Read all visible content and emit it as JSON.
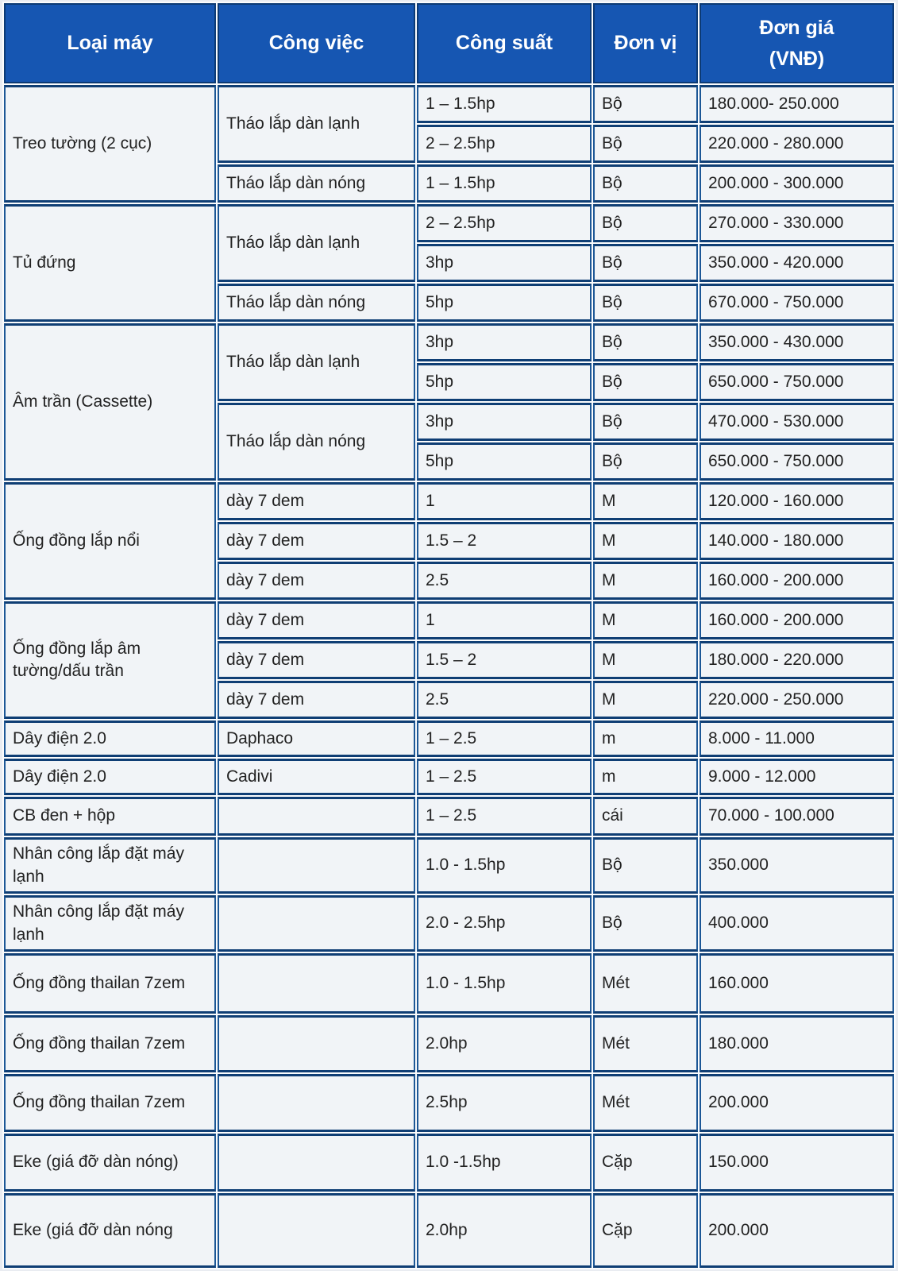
{
  "colors": {
    "header_bg": "#1656b2",
    "header_text": "#ffffff",
    "border_dark": "#0f3e74",
    "border_mid": "#1c5796",
    "cell_bg": "#f1f4f7",
    "page_bg": "#e9ecf1",
    "body_text": "#222222"
  },
  "table": {
    "headers": [
      {
        "id": "loai-may",
        "lines": [
          "Loại máy"
        ]
      },
      {
        "id": "cong-viec",
        "lines": [
          "Công việc"
        ]
      },
      {
        "id": "cong-suat",
        "lines": [
          "Công suất"
        ]
      },
      {
        "id": "don-vi",
        "lines": [
          "Đơn vị"
        ]
      },
      {
        "id": "don-gia",
        "lines": [
          "Đơn giá",
          "(VNĐ)"
        ]
      }
    ],
    "rows": [
      {
        "cells": [
          {
            "t": "Treo tường (2 cục)",
            "rs": 3
          },
          {
            "t": "Tháo lắp dàn lạnh",
            "rs": 2
          },
          {
            "t": "1 – 1.5hp"
          },
          {
            "t": "Bộ"
          },
          {
            "t": "180.000- 250.000"
          }
        ]
      },
      {
        "cells": [
          {
            "t": "2 – 2.5hp"
          },
          {
            "t": "Bộ"
          },
          {
            "t": "220.000 - 280.000"
          }
        ]
      },
      {
        "cells": [
          {
            "t": "Tháo lắp dàn nóng"
          },
          {
            "t": "1 – 1.5hp"
          },
          {
            "t": "Bộ"
          },
          {
            "t": "200.000 - 300.000"
          }
        ]
      },
      {
        "cells": [
          {
            "t": "Tủ đứng",
            "rs": 3
          },
          {
            "t": "Tháo lắp dàn lạnh",
            "rs": 2
          },
          {
            "t": "2 – 2.5hp"
          },
          {
            "t": "Bộ"
          },
          {
            "t": "270.000 - 330.000"
          }
        ]
      },
      {
        "cells": [
          {
            "t": "3hp"
          },
          {
            "t": "Bộ"
          },
          {
            "t": "350.000 - 420.000"
          }
        ]
      },
      {
        "cells": [
          {
            "t": "Tháo lắp dàn nóng"
          },
          {
            "t": "5hp"
          },
          {
            "t": "Bộ"
          },
          {
            "t": "670.000 - 750.000"
          }
        ]
      },
      {
        "cells": [
          {
            "t": "Âm trần (Cassette)",
            "rs": 4
          },
          {
            "t": "Tháo lắp dàn lạnh",
            "rs": 2
          },
          {
            "t": "3hp"
          },
          {
            "t": "Bộ"
          },
          {
            "t": "350.000 - 430.000"
          }
        ]
      },
      {
        "cells": [
          {
            "t": "5hp"
          },
          {
            "t": "Bộ"
          },
          {
            "t": "650.000 - 750.000"
          }
        ]
      },
      {
        "cells": [
          {
            "t": "Tháo lắp dàn nóng",
            "rs": 2
          },
          {
            "t": "3hp"
          },
          {
            "t": "Bộ"
          },
          {
            "t": "470.000 - 530.000"
          }
        ]
      },
      {
        "cells": [
          {
            "t": "5hp"
          },
          {
            "t": "Bộ"
          },
          {
            "t": "650.000 - 750.000"
          }
        ]
      },
      {
        "cells": [
          {
            "t": "Ống đồng lắp nổi",
            "rs": 3
          },
          {
            "t": "dày 7 dem"
          },
          {
            "t": "1"
          },
          {
            "t": "M"
          },
          {
            "t": "120.000 - 160.000"
          }
        ]
      },
      {
        "cells": [
          {
            "t": "dày 7 dem"
          },
          {
            "t": "1.5 – 2"
          },
          {
            "t": "M"
          },
          {
            "t": "140.000 - 180.000"
          }
        ]
      },
      {
        "cells": [
          {
            "t": "dày 7 dem"
          },
          {
            "t": "2.5"
          },
          {
            "t": "M"
          },
          {
            "t": "160.000 - 200.000"
          }
        ]
      },
      {
        "cells": [
          {
            "t": "Ống đồng lắp âm tường/dấu trần",
            "rs": 3
          },
          {
            "t": "dày 7 dem"
          },
          {
            "t": "1"
          },
          {
            "t": "M"
          },
          {
            "t": "160.000 - 200.000"
          }
        ]
      },
      {
        "cells": [
          {
            "t": "dày 7 dem"
          },
          {
            "t": "1.5 – 2"
          },
          {
            "t": "M"
          },
          {
            "t": "180.000 - 220.000"
          }
        ]
      },
      {
        "cells": [
          {
            "t": "dày 7 dem"
          },
          {
            "t": "2.5"
          },
          {
            "t": "M"
          },
          {
            "t": "220.000 - 250.000"
          }
        ]
      },
      {
        "cells": [
          {
            "t": "Dây điện 2.0"
          },
          {
            "t": "Daphaco"
          },
          {
            "t": "1 – 2.5"
          },
          {
            "t": "m"
          },
          {
            "t": "8.000 - 11.000"
          }
        ]
      },
      {
        "cells": [
          {
            "t": "Dây điện 2.0"
          },
          {
            "t": "Cadivi"
          },
          {
            "t": "1 – 2.5"
          },
          {
            "t": "m"
          },
          {
            "t": "9.000 - 12.000"
          }
        ]
      },
      {
        "cells": [
          {
            "t": "CB đen + hộp"
          },
          {
            "t": ""
          },
          {
            "t": "1 – 2.5"
          },
          {
            "t": "cái"
          },
          {
            "t": "70.000 - 100.000"
          }
        ]
      },
      {
        "cells": [
          {
            "t": "Nhân công lắp đặt máy lạnh"
          },
          {
            "t": ""
          },
          {
            "t": "1.0 - 1.5hp"
          },
          {
            "t": "Bộ"
          },
          {
            "t": "350.000"
          }
        ]
      },
      {
        "cells": [
          {
            "t": "Nhân công lắp đặt máy lạnh"
          },
          {
            "t": ""
          },
          {
            "t": "2.0 - 2.5hp"
          },
          {
            "t": "Bộ"
          },
          {
            "t": "400.000"
          }
        ]
      },
      {
        "cells": [
          {
            "t": "Ống đồng thailan 7zem"
          },
          {
            "t": ""
          },
          {
            "t": "1.0 - 1.5hp"
          },
          {
            "t": "Mét"
          },
          {
            "t": "160.000"
          }
        ]
      },
      {
        "cells": [
          {
            "t": "Ống đồng thailan 7zem"
          },
          {
            "t": ""
          },
          {
            "t": "2.0hp"
          },
          {
            "t": "Mét"
          },
          {
            "t": "180.000"
          }
        ]
      },
      {
        "cells": [
          {
            "t": "Ống đồng thailan 7zem"
          },
          {
            "t": ""
          },
          {
            "t": "2.5hp"
          },
          {
            "t": "Mét"
          },
          {
            "t": "200.000"
          }
        ]
      },
      {
        "cells": [
          {
            "t": "Eke (giá đỡ dàn nóng)"
          },
          {
            "t": ""
          },
          {
            "t": "1.0 -1.5hp"
          },
          {
            "t": "Cặp"
          },
          {
            "t": "150.000"
          }
        ]
      },
      {
        "cells": [
          {
            "t": "Eke (giá đỡ dàn nóng"
          },
          {
            "t": ""
          },
          {
            "t": "2.0hp"
          },
          {
            "t": "Cặp"
          },
          {
            "t": "200.000"
          }
        ]
      }
    ]
  }
}
